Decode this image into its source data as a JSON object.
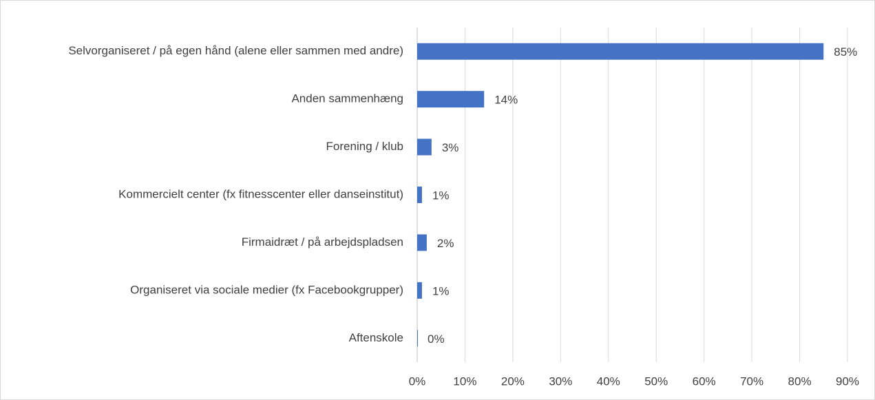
{
  "chart_data": {
    "type": "hbar",
    "categories": [
      "Selvorganiseret / på egen hånd (alene eller sammen med andre)",
      "Anden sammenhæng",
      "Forening / klub",
      "Kommercielt center (fx fitnesscenter eller danseinstitut)",
      "Firmaidræt / på arbejdspladsen",
      "Organiseret via sociale medier (fx Facebookgrupper)",
      "Aftenskole"
    ],
    "values": [
      85,
      14,
      3,
      1,
      2,
      1,
      0
    ],
    "value_labels": [
      "85%",
      "14%",
      "3%",
      "1%",
      "2%",
      "1%",
      "0%"
    ],
    "color": "#4472c4",
    "xlim": [
      0,
      90
    ],
    "xticks": [
      {
        "value": 0,
        "label": "0%"
      },
      {
        "value": 10,
        "label": "10%"
      },
      {
        "value": 20,
        "label": "20%"
      },
      {
        "value": 30,
        "label": "30%"
      },
      {
        "value": 40,
        "label": "40%"
      },
      {
        "value": 50,
        "label": "50%"
      },
      {
        "value": 60,
        "label": "60%"
      },
      {
        "value": 70,
        "label": "70%"
      },
      {
        "value": 80,
        "label": "80%"
      },
      {
        "value": 90,
        "label": "90%"
      }
    ],
    "grid": true
  }
}
